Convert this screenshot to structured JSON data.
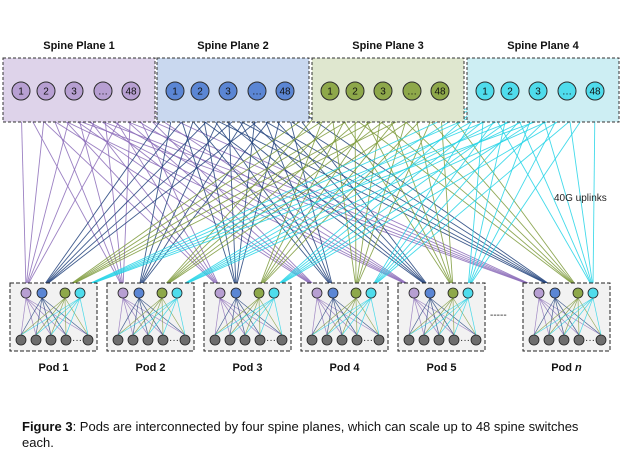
{
  "spine_planes": [
    {
      "title": "Spine Plane 1",
      "fill": "#ded3ea",
      "node_fill": "#b79fd2",
      "line": "#8b6bb8",
      "nodes": [
        "1",
        "2",
        "3",
        "...",
        "48"
      ]
    },
    {
      "title": "Spine Plane 2",
      "fill": "#c9d8ef",
      "node_fill": "#5b86d4",
      "line": "#1f3f7a",
      "nodes": [
        "1",
        "2",
        "3",
        "...",
        "48"
      ]
    },
    {
      "title": "Spine Plane 3",
      "fill": "#dfe7cf",
      "node_fill": "#8ea84a",
      "line": "#7d9a3a",
      "nodes": [
        "1",
        "2",
        "3",
        "...",
        "48"
      ]
    },
    {
      "title": "Spine Plane 4",
      "fill": "#cdeef3",
      "node_fill": "#4fdcec",
      "line": "#22d3e6",
      "nodes": [
        "1",
        "2",
        "3",
        "...",
        "48"
      ]
    }
  ],
  "uplink_label": "40G uplinks",
  "pods": [
    {
      "label": "Pod 1"
    },
    {
      "label": "Pod 2"
    },
    {
      "label": "Pod 3"
    },
    {
      "label": "Pod 4"
    },
    {
      "label": "Pod 5"
    },
    {
      "label_prefix": "Pod ",
      "label_italic": "n"
    }
  ],
  "pod_ellipsis": "·····",
  "gap_marker": "-----",
  "caption": {
    "bold": "Figure 3",
    "text": ": Pods are interconnected by four spine planes, which can scale up to 48 spine switches each."
  },
  "colors": {
    "server_fill": "#6e6e6e",
    "pod_box": "#f2f2f2"
  }
}
